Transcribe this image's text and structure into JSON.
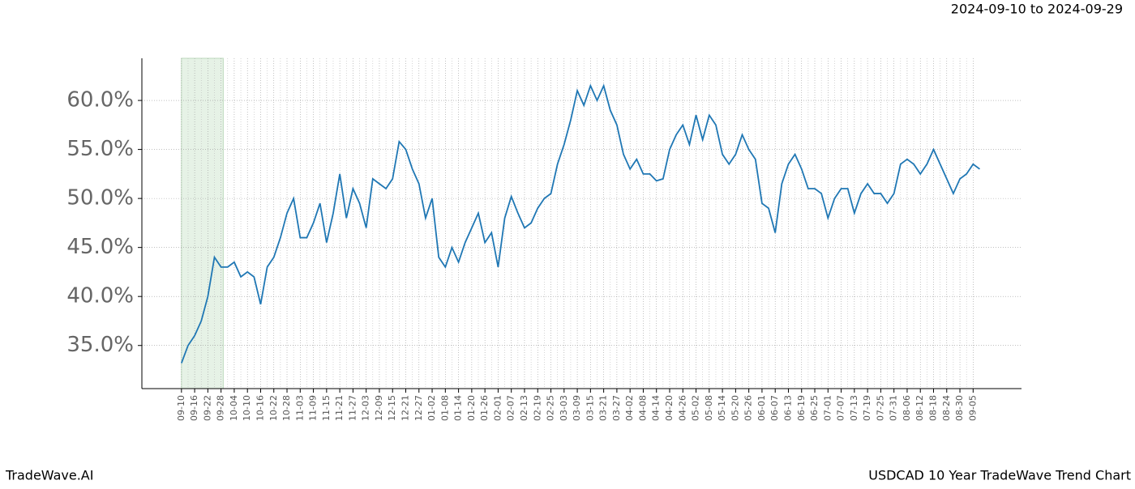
{
  "header": {
    "date_range": "2024-09-10 to 2024-09-29"
  },
  "footer": {
    "brand": "TradeWave.AI",
    "chart_name": "USDCAD 10 Year TradeWave Trend Chart"
  },
  "chart_data": {
    "type": "line",
    "grid": true,
    "color": "#1f77b4",
    "highlight_x": [
      0,
      19
    ],
    "xlim": [
      -18,
      382
    ],
    "ylim": [
      30.6,
      64.3
    ],
    "yticks": [
      {
        "value": 35,
        "label": "35.0%"
      },
      {
        "value": 40,
        "label": "40.0%"
      },
      {
        "value": 45,
        "label": "45.0%"
      },
      {
        "value": 50,
        "label": "50.0%"
      },
      {
        "value": 55,
        "label": "55.0%"
      },
      {
        "value": 60,
        "label": "60.0%"
      }
    ],
    "xticks": [
      {
        "value": 0,
        "label": "09-10"
      },
      {
        "value": 6,
        "label": "09-16"
      },
      {
        "value": 12,
        "label": "09-22"
      },
      {
        "value": 18,
        "label": "09-28"
      },
      {
        "value": 24,
        "label": "10-04"
      },
      {
        "value": 30,
        "label": "10-10"
      },
      {
        "value": 36,
        "label": "10-16"
      },
      {
        "value": 42,
        "label": "10-22"
      },
      {
        "value": 48,
        "label": "10-28"
      },
      {
        "value": 54,
        "label": "11-03"
      },
      {
        "value": 60,
        "label": "11-09"
      },
      {
        "value": 66,
        "label": "11-15"
      },
      {
        "value": 72,
        "label": "11-21"
      },
      {
        "value": 78,
        "label": "11-27"
      },
      {
        "value": 84,
        "label": "12-03"
      },
      {
        "value": 90,
        "label": "12-09"
      },
      {
        "value": 96,
        "label": "12-15"
      },
      {
        "value": 102,
        "label": "12-21"
      },
      {
        "value": 108,
        "label": "12-27"
      },
      {
        "value": 114,
        "label": "01-02"
      },
      {
        "value": 120,
        "label": "01-08"
      },
      {
        "value": 126,
        "label": "01-14"
      },
      {
        "value": 132,
        "label": "01-20"
      },
      {
        "value": 138,
        "label": "01-26"
      },
      {
        "value": 144,
        "label": "02-01"
      },
      {
        "value": 150,
        "label": "02-07"
      },
      {
        "value": 156,
        "label": "02-13"
      },
      {
        "value": 162,
        "label": "02-19"
      },
      {
        "value": 168,
        "label": "02-25"
      },
      {
        "value": 174,
        "label": "03-03"
      },
      {
        "value": 180,
        "label": "03-09"
      },
      {
        "value": 186,
        "label": "03-15"
      },
      {
        "value": 192,
        "label": "03-21"
      },
      {
        "value": 198,
        "label": "03-27"
      },
      {
        "value": 204,
        "label": "04-02"
      },
      {
        "value": 210,
        "label": "04-08"
      },
      {
        "value": 216,
        "label": "04-14"
      },
      {
        "value": 222,
        "label": "04-20"
      },
      {
        "value": 228,
        "label": "04-26"
      },
      {
        "value": 234,
        "label": "05-02"
      },
      {
        "value": 240,
        "label": "05-08"
      },
      {
        "value": 246,
        "label": "05-14"
      },
      {
        "value": 252,
        "label": "05-20"
      },
      {
        "value": 258,
        "label": "05-26"
      },
      {
        "value": 264,
        "label": "06-01"
      },
      {
        "value": 270,
        "label": "06-07"
      },
      {
        "value": 276,
        "label": "06-13"
      },
      {
        "value": 282,
        "label": "06-19"
      },
      {
        "value": 288,
        "label": "06-25"
      },
      {
        "value": 294,
        "label": "07-01"
      },
      {
        "value": 300,
        "label": "07-07"
      },
      {
        "value": 306,
        "label": "07-13"
      },
      {
        "value": 312,
        "label": "07-19"
      },
      {
        "value": 318,
        "label": "07-25"
      },
      {
        "value": 324,
        "label": "07-31"
      },
      {
        "value": 330,
        "label": "08-06"
      },
      {
        "value": 336,
        "label": "08-12"
      },
      {
        "value": 342,
        "label": "08-18"
      },
      {
        "value": 348,
        "label": "08-24"
      },
      {
        "value": 354,
        "label": "08-30"
      },
      {
        "value": 360,
        "label": "09-05"
      }
    ],
    "x": [
      0,
      3,
      6,
      9,
      12,
      15,
      18,
      21,
      24,
      27,
      30,
      33,
      36,
      39,
      42,
      45,
      48,
      51,
      54,
      57,
      60,
      63,
      66,
      69,
      72,
      75,
      78,
      81,
      84,
      87,
      90,
      93,
      96,
      99,
      102,
      105,
      108,
      111,
      114,
      117,
      120,
      123,
      126,
      129,
      132,
      135,
      138,
      141,
      144,
      147,
      150,
      153,
      156,
      159,
      162,
      165,
      168,
      171,
      174,
      177,
      180,
      183,
      186,
      189,
      192,
      195,
      198,
      201,
      204,
      207,
      210,
      213,
      216,
      219,
      222,
      225,
      228,
      231,
      234,
      237,
      240,
      243,
      246,
      249,
      252,
      255,
      258,
      261,
      264,
      267,
      270,
      273,
      276,
      279,
      282,
      285,
      288,
      291,
      294,
      297,
      300,
      303,
      306,
      309,
      312,
      315,
      318,
      321,
      324,
      327,
      330,
      333,
      336,
      339,
      342,
      345,
      348,
      351,
      354,
      357,
      360,
      363
    ],
    "values": [
      33.2,
      35,
      36,
      37.5,
      40,
      44,
      43,
      43,
      43.5,
      42,
      42.5,
      42,
      39.2,
      43,
      44,
      46,
      48.5,
      50,
      46,
      46,
      47.5,
      49.5,
      45.5,
      48.5,
      52.5,
      48,
      51,
      49.5,
      47,
      52,
      51.5,
      51,
      52,
      55.8,
      55,
      53,
      51.5,
      48,
      50,
      44,
      43,
      45,
      43.5,
      45.5,
      47,
      48.5,
      45.5,
      46.5,
      43,
      48,
      50.2,
      48.5,
      47,
      47.5,
      49,
      50,
      50.5,
      53.5,
      55.5,
      58,
      61,
      59.5,
      61.5,
      60,
      61.5,
      59,
      57.5,
      54.5,
      53,
      54,
      52.5,
      52.5,
      51.8,
      52,
      55,
      56.5,
      57.5,
      55.5,
      58.5,
      56,
      58.5,
      57.5,
      54.5,
      53.5,
      54.5,
      56.5,
      55,
      54,
      49.5,
      49,
      46.5,
      51.5,
      53.5,
      54.5,
      53,
      51,
      51,
      50.5,
      48,
      50,
      51,
      51,
      48.5,
      50.5,
      51.5,
      50.5,
      50.5,
      49.5,
      50.5,
      53.5,
      54,
      53.5,
      52.5,
      53.5,
      55,
      53.5,
      52,
      50.5,
      52,
      52.5,
      53.5,
      53
    ]
  }
}
